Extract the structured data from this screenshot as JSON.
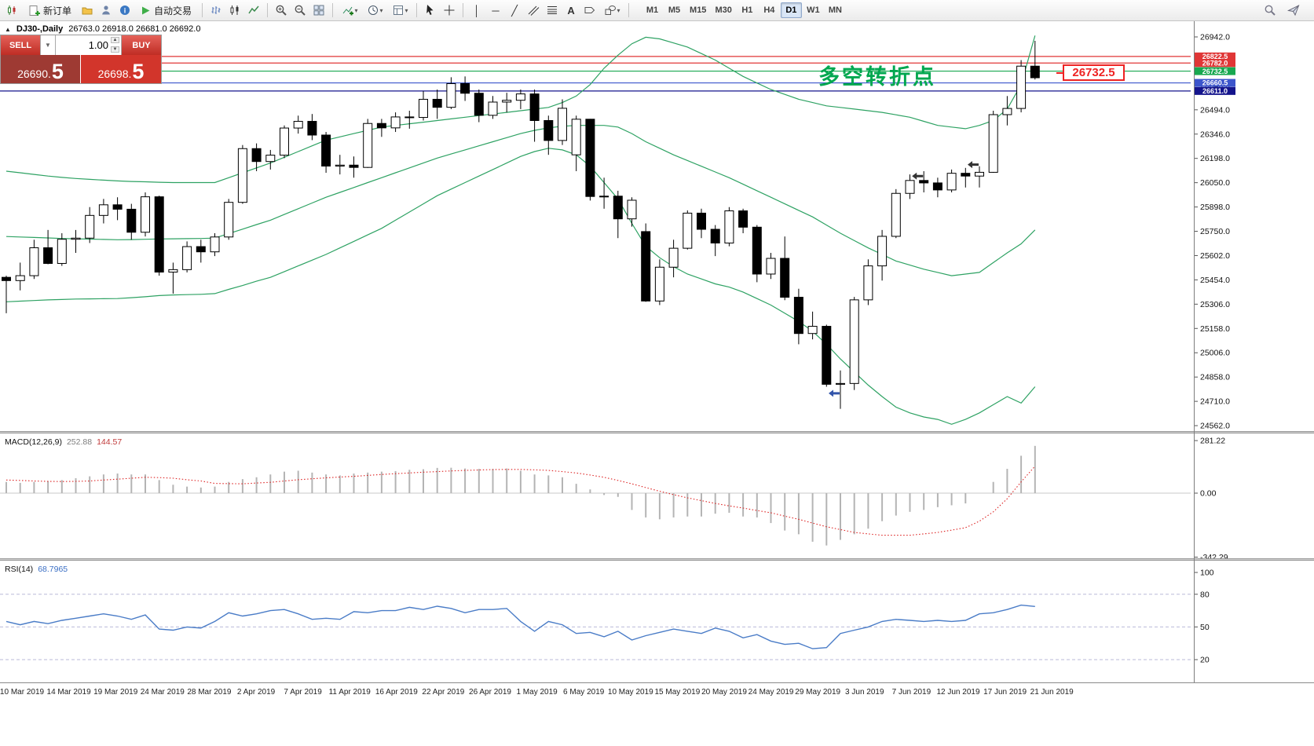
{
  "toolbar": {
    "new_order_label": "新订单",
    "autotrading_label": "自动交易",
    "timeframes": [
      "M1",
      "M5",
      "M15",
      "M30",
      "H1",
      "H4",
      "D1",
      "W1",
      "MN"
    ],
    "active_timeframe": "D1"
  },
  "chart": {
    "title_symbol": "DJ30-,Daily",
    "title_ohlc": "26763.0 26918.0 26681.0 26692.0",
    "price_axis_labels": [
      "26942.0",
      "26794.0",
      "26646.0",
      "26494.0",
      "26346.0",
      "26198.0",
      "26050.0",
      "25898.0",
      "25750.0",
      "25602.0",
      "25454.0",
      "25306.0",
      "25158.0",
      "25006.0",
      "24858.0",
      "24710.0",
      "24562.0"
    ],
    "levels": [
      {
        "label": "26822.5",
        "price": 26822.5,
        "color": "#e03636"
      },
      {
        "label": "26782.0",
        "price": 26782.0,
        "color": "#e03636"
      },
      {
        "label": "26732.5",
        "price": 26732.5,
        "color": "#18a850"
      },
      {
        "label": "26660.5",
        "price": 26660.5,
        "color": "#3c55cc"
      },
      {
        "label": "26611.0",
        "price": 26611.0,
        "color": "#14148c"
      }
    ],
    "annotation_text": "多空转折点",
    "annotation_color": "#00a74f",
    "price_tag": "26732.5"
  },
  "trade_panel": {
    "sell_label": "SELL",
    "buy_label": "BUY",
    "volume": "1.00",
    "sell_price_small": "26690.",
    "sell_price_big": "5",
    "buy_price_small": "26698.",
    "buy_price_big": "5"
  },
  "macd_panel": {
    "label": "MACD(12,26,9)",
    "value_main": "252.88",
    "value_signal": "144.57",
    "axis_labels": [
      "281.22",
      "0.00",
      "-342.29"
    ]
  },
  "rsi_panel": {
    "label": "RSI(14)",
    "value": "68.7965",
    "axis_labels": [
      "100",
      "80",
      "50",
      "20"
    ]
  },
  "chart_data": {
    "type": "candlestick",
    "symbol": "DJ30",
    "timeframe": "Daily",
    "y_range_main": [
      24562.0,
      26942.0
    ],
    "y_range_macd": [
      -342.29,
      281.22
    ],
    "y_range_rsi": [
      0,
      100
    ],
    "x_dates": [
      "10 Mar 2019",
      "14 Mar 2019",
      "19 Mar 2019",
      "24 Mar 2019",
      "28 Mar 2019",
      "2 Apr 2019",
      "7 Apr 2019",
      "11 Apr 2019",
      "16 Apr 2019",
      "22 Apr 2019",
      "26 Apr 2019",
      "1 May 2019",
      "6 May 2019",
      "10 May 2019",
      "15 May 2019",
      "20 May 2019",
      "24 May 2019",
      "29 May 2019",
      "3 Jun 2019",
      "7 Jun 2019",
      "12 Jun 2019",
      "17 Jun 2019",
      "21 Jun 2019"
    ],
    "candles_ohlc": [
      [
        25470,
        25480,
        25250,
        25450
      ],
      [
        25450,
        25560,
        25390,
        25480
      ],
      [
        25480,
        25700,
        25460,
        25651
      ],
      [
        25651,
        25760,
        25550,
        25555
      ],
      [
        25555,
        25740,
        25540,
        25703
      ],
      [
        25703,
        25760,
        25620,
        25710
      ],
      [
        25710,
        25900,
        25680,
        25849
      ],
      [
        25849,
        25950,
        25800,
        25914
      ],
      [
        25914,
        25960,
        25820,
        25887
      ],
      [
        25887,
        25920,
        25700,
        25746
      ],
      [
        25746,
        25990,
        25720,
        25963
      ],
      [
        25963,
        25970,
        25480,
        25502
      ],
      [
        25502,
        25560,
        25370,
        25517
      ],
      [
        25517,
        25690,
        25500,
        25658
      ],
      [
        25658,
        25700,
        25560,
        25626
      ],
      [
        25626,
        25740,
        25600,
        25717
      ],
      [
        25717,
        25950,
        25700,
        25929
      ],
      [
        25929,
        26280,
        25920,
        26258
      ],
      [
        26258,
        26290,
        26120,
        26179
      ],
      [
        26179,
        26250,
        26130,
        26218
      ],
      [
        26218,
        26400,
        26200,
        26384
      ],
      [
        26384,
        26460,
        26350,
        26425
      ],
      [
        26425,
        26470,
        26310,
        26341
      ],
      [
        26341,
        26360,
        26110,
        26151
      ],
      [
        26151,
        26220,
        26100,
        26157
      ],
      [
        26157,
        26210,
        26080,
        26143
      ],
      [
        26143,
        26440,
        26140,
        26412
      ],
      [
        26412,
        26440,
        26330,
        26385
      ],
      [
        26385,
        26480,
        26360,
        26452
      ],
      [
        26452,
        26490,
        26380,
        26449
      ],
      [
        26449,
        26610,
        26430,
        26560
      ],
      [
        26560,
        26620,
        26440,
        26511
      ],
      [
        26511,
        26695,
        26500,
        26656
      ],
      [
        26656,
        26700,
        26550,
        26597
      ],
      [
        26597,
        26620,
        26420,
        26462
      ],
      [
        26462,
        26580,
        26440,
        26543
      ],
      [
        26543,
        26600,
        26480,
        26554
      ],
      [
        26554,
        26620,
        26500,
        26593
      ],
      [
        26593,
        26620,
        26300,
        26430
      ],
      [
        26430,
        26460,
        26220,
        26308
      ],
      [
        26308,
        26560,
        26280,
        26505
      ],
      [
        26220,
        26460,
        26120,
        26438
      ],
      [
        26438,
        26440,
        25940,
        25965
      ],
      [
        25965,
        26080,
        25890,
        25967
      ],
      [
        25967,
        26000,
        25710,
        25828
      ],
      [
        25828,
        25960,
        25780,
        25942
      ],
      [
        25750,
        25800,
        25320,
        25325
      ],
      [
        25325,
        25580,
        25300,
        25532
      ],
      [
        25532,
        25700,
        25470,
        25648
      ],
      [
        25648,
        25880,
        25640,
        25863
      ],
      [
        25863,
        25890,
        25710,
        25764
      ],
      [
        25764,
        25790,
        25600,
        25680
      ],
      [
        25680,
        25900,
        25660,
        25877
      ],
      [
        25877,
        25890,
        25740,
        25777
      ],
      [
        25777,
        25790,
        25440,
        25490
      ],
      [
        25490,
        25620,
        25460,
        25586
      ],
      [
        25586,
        25720,
        25330,
        25348
      ],
      [
        25348,
        25400,
        25060,
        25126
      ],
      [
        25126,
        25260,
        25090,
        25170
      ],
      [
        25170,
        25180,
        24800,
        24815
      ],
      [
        24815,
        24900,
        24665,
        24820
      ],
      [
        24820,
        25350,
        24780,
        25332
      ],
      [
        25332,
        25580,
        25300,
        25540
      ],
      [
        25540,
        25760,
        25450,
        25721
      ],
      [
        25721,
        26010,
        25710,
        25984
      ],
      [
        25984,
        26100,
        25950,
        26063
      ],
      [
        26063,
        26120,
        25990,
        26048
      ],
      [
        26048,
        26080,
        25960,
        26005
      ],
      [
        26005,
        26130,
        25990,
        26107
      ],
      [
        26107,
        26140,
        26020,
        26090
      ],
      [
        26090,
        26150,
        26020,
        26113
      ],
      [
        26113,
        26490,
        26110,
        26466
      ],
      [
        26466,
        26580,
        26400,
        26504
      ],
      [
        26504,
        26800,
        26480,
        26763
      ],
      [
        26763,
        26918,
        26681,
        26692
      ]
    ],
    "bollinger": {
      "upper": [
        26120,
        26110,
        26100,
        26090,
        26082,
        26075,
        26070,
        26065,
        26060,
        26057,
        26055,
        26052,
        26050,
        26050,
        26050,
        26050,
        26080,
        26110,
        26140,
        26170,
        26205,
        26240,
        26275,
        26310,
        26330,
        26350,
        26370,
        26390,
        26400,
        26410,
        26420,
        26430,
        26440,
        26450,
        26460,
        26470,
        26480,
        26490,
        26500,
        26510,
        26540,
        26580,
        26650,
        26750,
        26830,
        26900,
        26940,
        26930,
        26905,
        26880,
        26840,
        26800,
        26750,
        26700,
        26660,
        26620,
        26590,
        26560,
        26540,
        26520,
        26510,
        26500,
        26490,
        26480,
        26465,
        26450,
        26425,
        26400,
        26390,
        26380,
        26400,
        26430,
        26500,
        26650,
        26950
      ],
      "middle": [
        25720,
        25717,
        25714,
        25711,
        25708,
        25706,
        25704,
        25702,
        25700,
        25701,
        25703,
        25705,
        25706,
        25707,
        25708,
        25710,
        25738,
        25765,
        25793,
        25820,
        25855,
        25890,
        25925,
        25960,
        25990,
        26020,
        26050,
        26080,
        26110,
        26140,
        26170,
        26200,
        26225,
        26250,
        26275,
        26300,
        26325,
        26350,
        26370,
        26385,
        26395,
        26400,
        26400,
        26400,
        26390,
        26350,
        26300,
        26260,
        26220,
        26185,
        26150,
        26115,
        26080,
        26040,
        26000,
        25960,
        25920,
        25880,
        25840,
        25790,
        25740,
        25695,
        25650,
        25610,
        25570,
        25545,
        25520,
        25500,
        25480,
        25490,
        25500,
        25560,
        25620,
        25675,
        25760
      ],
      "lower": [
        25320,
        25324,
        25328,
        25332,
        25334,
        25337,
        25338,
        25339,
        25340,
        25345,
        25351,
        25358,
        25362,
        25364,
        25366,
        25370,
        25396,
        25420,
        25446,
        25470,
        25505,
        25540,
        25575,
        25610,
        25650,
        25690,
        25730,
        25770,
        25820,
        25870,
        25920,
        25970,
        26010,
        26050,
        26090,
        26130,
        26170,
        26210,
        26240,
        26260,
        26250,
        26220,
        26150,
        26050,
        25950,
        25800,
        25660,
        25590,
        25535,
        25490,
        25460,
        25430,
        25410,
        25380,
        25340,
        25300,
        25250,
        25200,
        25140,
        25060,
        24970,
        24890,
        24810,
        24740,
        24675,
        24640,
        24615,
        24600,
        24570,
        24600,
        24640,
        24690,
        24740,
        24700,
        24800
      ]
    },
    "macd": {
      "histogram": [
        60,
        55,
        60,
        65,
        70,
        80,
        90,
        100,
        105,
        100,
        100,
        70,
        45,
        35,
        30,
        35,
        60,
        75,
        85,
        100,
        115,
        120,
        110,
        100,
        95,
        105,
        110,
        115,
        118,
        125,
        128,
        135,
        136,
        132,
        130,
        130,
        132,
        120,
        100,
        95,
        85,
        50,
        20,
        -10,
        -20,
        -90,
        -130,
        -140,
        -130,
        -125,
        -125,
        -110,
        -105,
        -125,
        -130,
        -160,
        -200,
        -220,
        -260,
        -280,
        -250,
        -220,
        -190,
        -150,
        -120,
        -100,
        -90,
        -75,
        -65,
        -55,
        0,
        60,
        130,
        200,
        252.88
      ],
      "signal": [
        70,
        68,
        65,
        63,
        62,
        63,
        65,
        70,
        75,
        80,
        85,
        83,
        80,
        72,
        65,
        52,
        51,
        50,
        54,
        58,
        65,
        72,
        77,
        82,
        86,
        90,
        95,
        100,
        104,
        108,
        112,
        115,
        119,
        122,
        124,
        126,
        127,
        127,
        125,
        122,
        115,
        108,
        97,
        85,
        68,
        50,
        30,
        10,
        -8,
        -25,
        -40,
        -55,
        -68,
        -80,
        -93,
        -105,
        -123,
        -140,
        -160,
        -180,
        -195,
        -210,
        -218,
        -225,
        -225,
        -225,
        -218,
        -210,
        -198,
        -185,
        -150,
        -100,
        -30,
        60,
        144.57
      ]
    },
    "rsi": [
      55,
      52,
      55,
      53,
      56,
      58,
      60,
      62,
      60,
      57,
      61,
      48,
      47,
      50,
      49,
      55,
      63,
      60,
      62,
      65,
      66,
      62,
      57,
      58,
      57,
      64,
      63,
      65,
      65,
      68,
      66,
      69,
      67,
      63,
      66,
      66,
      67,
      55,
      46,
      55,
      52,
      44,
      45,
      41,
      46,
      38,
      42,
      45,
      48,
      46,
      44,
      49,
      46,
      40,
      43,
      37,
      34,
      35,
      30,
      31,
      44,
      47,
      50,
      55,
      57,
      56,
      55,
      56,
      55,
      56,
      62,
      63,
      66,
      70,
      68.8
    ],
    "markers": [
      {
        "index": 60,
        "price": 24760,
        "color": "#3355aa"
      },
      {
        "index": 66,
        "price": 26090,
        "color": "#333333"
      },
      {
        "index": 70,
        "price": 26160,
        "color": "#333333"
      }
    ]
  }
}
